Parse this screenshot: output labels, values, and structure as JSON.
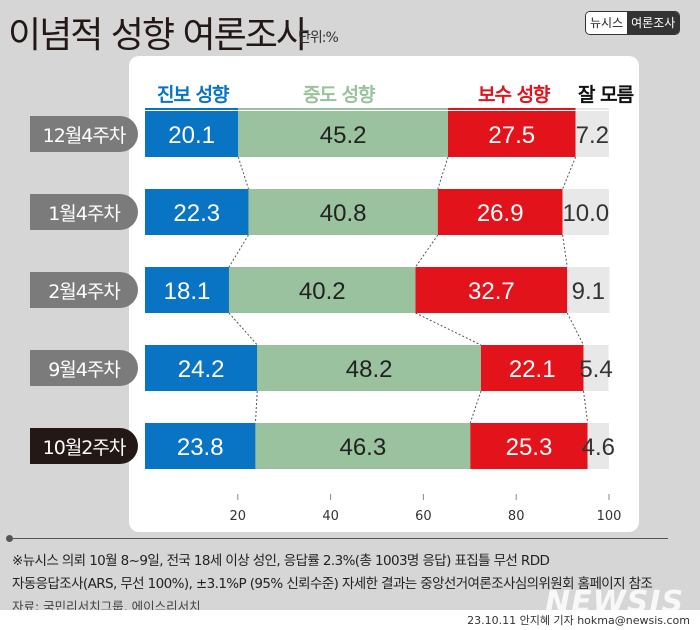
{
  "header": {
    "title": "이념적 성향 여론조사",
    "unit": "단위:%",
    "brand_left": "뉴시스",
    "brand_right": "여론조사"
  },
  "chart_data": {
    "type": "bar",
    "stacked": true,
    "orientation": "horizontal",
    "categories": [
      "12월4주차",
      "1월4주차",
      "2월4주차",
      "9월4주차",
      "10월2주차"
    ],
    "series": [
      {
        "name": "진보 성향",
        "color": "#0a74c4",
        "values": [
          20.1,
          22.3,
          18.1,
          24.2,
          23.8
        ]
      },
      {
        "name": "중도 성향",
        "color": "#9bc29e",
        "values": [
          45.2,
          40.8,
          40.2,
          48.2,
          46.3
        ]
      },
      {
        "name": "보수 성향",
        "color": "#e3131b",
        "values": [
          27.5,
          26.9,
          32.7,
          22.1,
          25.3
        ]
      },
      {
        "name": "잘 모름",
        "color": "#e8e8e8",
        "values": [
          7.2,
          10.0,
          9.1,
          5.4,
          4.6
        ]
      }
    ],
    "xticks": [
      20,
      40,
      60,
      80,
      100
    ],
    "xlim": [
      0,
      100
    ]
  },
  "notes": [
    "※뉴시스 의뢰 10월 8~9일, 전국 18세 이상 성인, 응답률 2.3%(총 1003명 응답) 표집틀 무선 RDD",
    "자동응답조사(ARS, 무선 100%), ±3.1%P (95% 신뢰수준) 자세한 결과는 중앙선거여론조사심의위원회 홈페이지 참조"
  ],
  "source": "자료: 국민리서치그룹, 에이스리서치",
  "credit": "23.10.11 안지혜 기자 hokma@newsis.com",
  "logo": "NEWSIS"
}
